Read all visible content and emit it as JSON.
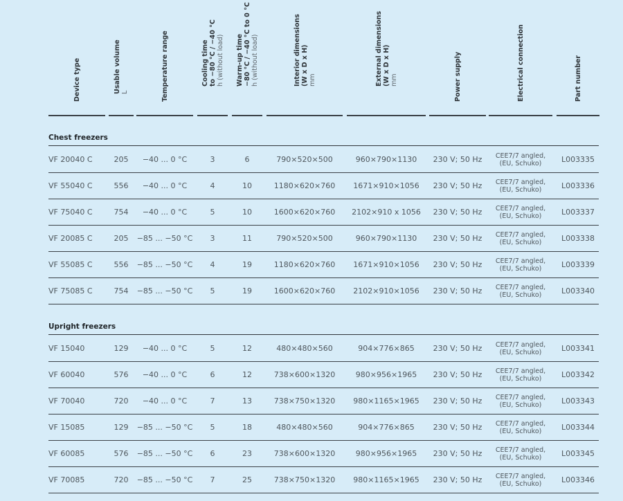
{
  "headers": [
    {
      "label": "Device type",
      "unit": ""
    },
    {
      "label": "Usable volume",
      "unit": "L"
    },
    {
      "label": "Temperature range",
      "unit": ""
    },
    {
      "label": "Cooling time",
      "label2": "to −80 °C / −40 °C",
      "unit": "h (without load)"
    },
    {
      "label": "Warm-up time",
      "label2": "−80 °C / −40 °C to 0 °C",
      "unit": "h (without load)"
    },
    {
      "label": "Interior dimensions",
      "label2": "(W x D x H)",
      "unit": "mm"
    },
    {
      "label": "External dimensions",
      "label2": "(W x D x H)",
      "unit": "mm"
    },
    {
      "label": "Power supply",
      "unit": ""
    },
    {
      "label": "Electrical connection",
      "unit": ""
    },
    {
      "label": "Part number",
      "unit": ""
    }
  ],
  "sections": [
    {
      "title": "Chest freezers",
      "rows": [
        [
          "VF 20040 C",
          "205",
          "−40 ... 0 °C",
          "3",
          "6",
          "790×520×500",
          "960×790×1130",
          "230 V; 50 Hz",
          "CEE7/7 angled, (EU, Schuko)",
          "L003335"
        ],
        [
          "VF 55040 C",
          "556",
          "−40 ... 0 °C",
          "4",
          "10",
          "1180×620×760",
          "1671×910×1056",
          "230 V; 50 Hz",
          "CEE7/7 angled, (EU, Schuko)",
          "L003336"
        ],
        [
          "VF 75040 C",
          "754",
          "−40 ... 0 °C",
          "5",
          "10",
          "1600×620×760",
          "2102×910 x 1056",
          "230 V; 50 Hz",
          "CEE7/7 angled, (EU, Schuko)",
          "L003337"
        ],
        [
          "VF 20085 C",
          "205",
          "−85 ... −50 °C",
          "3",
          "11",
          "790×520×500",
          "960×790×1130",
          "230 V; 50 Hz",
          "CEE7/7 angled, (EU, Schuko)",
          "L003338"
        ],
        [
          "VF 55085 C",
          "556",
          "−85 ... −50 °C",
          "4",
          "19",
          "1180×620×760",
          "1671×910×1056",
          "230 V; 50 Hz",
          "CEE7/7 angled, (EU, Schuko)",
          "L003339"
        ],
        [
          "VF 75085 C",
          "754",
          "−85 ... −50 °C",
          "5",
          "19",
          "1600×620×760",
          "2102×910×1056",
          "230 V; 50 Hz",
          "CEE7/7 angled, (EU, Schuko)",
          "L003340"
        ]
      ]
    },
    {
      "title": "Upright freezers",
      "rows": [
        [
          "VF 15040",
          "129",
          "−40 ... 0 °C",
          "5",
          "12",
          "480×480×560",
          "904×776×865",
          "230 V; 50 Hz",
          "CEE7/7 angled, (EU, Schuko)",
          "L003341"
        ],
        [
          "VF 60040",
          "576",
          "−40 ... 0 °C",
          "6",
          "12",
          "738×600×1320",
          "980×956×1965",
          "230 V; 50 Hz",
          "CEE7/7 angled, (EU, Schuko)",
          "L003342"
        ],
        [
          "VF 70040",
          "720",
          "−40 ... 0 °C",
          "7",
          "13",
          "738×750×1320",
          "980×1165×1965",
          "230 V; 50 Hz",
          "CEE7/7 angled, (EU, Schuko)",
          "L003343"
        ],
        [
          "VF 15085",
          "129",
          "−85 ... −50 °C",
          "5",
          "18",
          "480×480×560",
          "904×776×865",
          "230 V; 50 Hz",
          "CEE7/7 angled, (EU, Schuko)",
          "L003344"
        ],
        [
          "VF 60085",
          "576",
          "−85 ... −50 °C",
          "6",
          "23",
          "738×600×1320",
          "980×956×1965",
          "230 V; 50 Hz",
          "CEE7/7 angled, (EU, Schuko)",
          "L003345"
        ],
        [
          "VF 70085",
          "720",
          "−85 ... −50 °C",
          "7",
          "25",
          "738×750×1320",
          "980×1165×1965",
          "230 V; 50 Hz",
          "CEE7/7 angled, (EU, Schuko)",
          "L003346"
        ]
      ]
    }
  ]
}
